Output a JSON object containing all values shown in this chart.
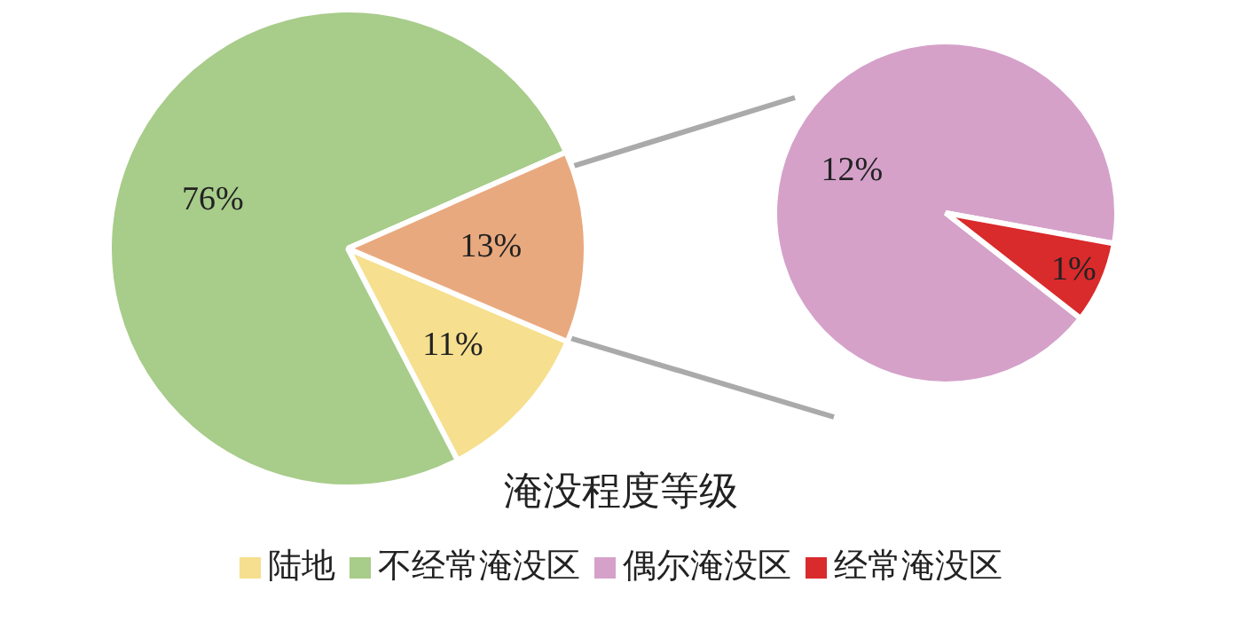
{
  "chart_data": [
    {
      "type": "pie",
      "categories": [
        "陆地",
        "不经常淹没区",
        null
      ],
      "values": [
        11,
        76,
        13
      ],
      "colors": [
        "#f6df8e",
        "#a8cc8a",
        "#e9a97e"
      ],
      "value_labels": [
        "11%",
        "76%",
        "13%"
      ],
      "legend": "bottom",
      "legend_title": "淹没程度等级"
    },
    {
      "type": "pie",
      "categories": [
        "偶尔淹没区",
        "经常淹没区"
      ],
      "values": [
        12,
        1
      ],
      "colors": [
        "#d5a1c9",
        "#d92a2c"
      ],
      "value_labels": [
        "12%",
        "1%"
      ],
      "legend": "bottom"
    }
  ]
}
